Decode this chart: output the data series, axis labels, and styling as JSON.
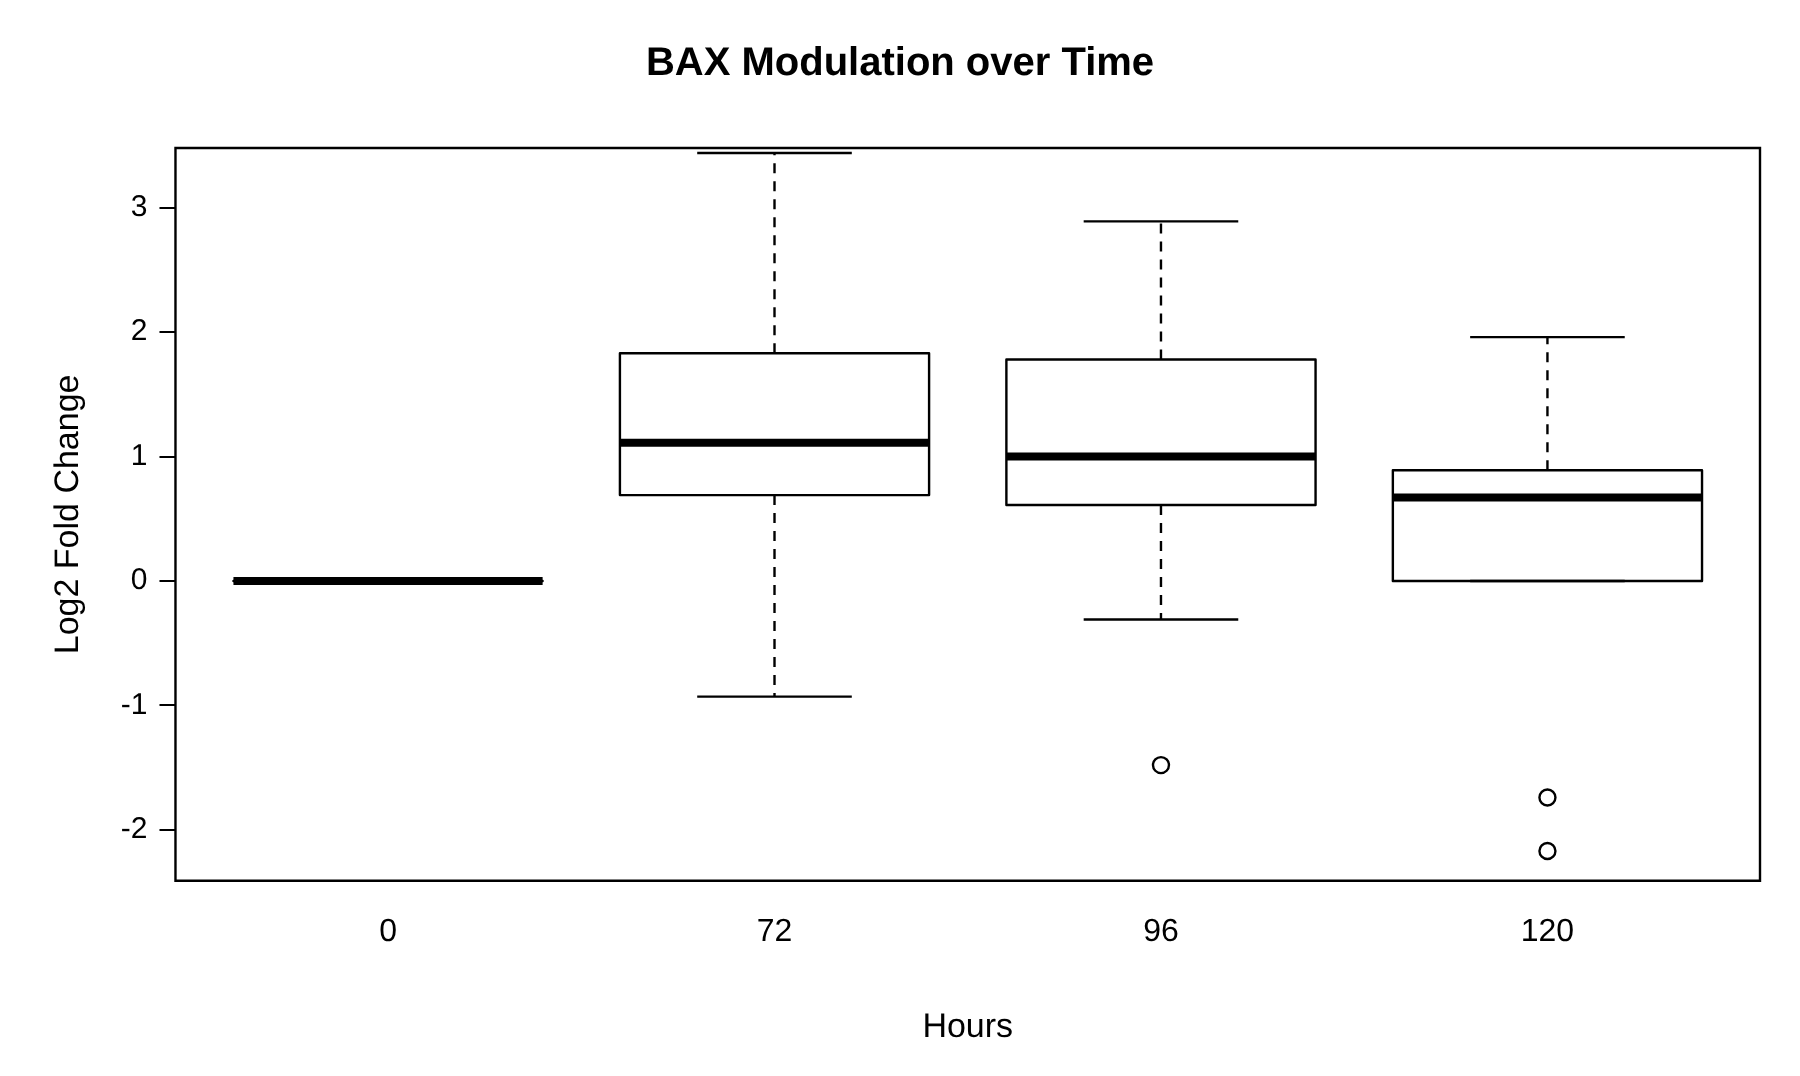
{
  "chart_data": {
    "type": "box",
    "title": "BAX Modulation over Time",
    "xlabel": "Hours",
    "ylabel": "Log2 Fold Change",
    "categories": [
      "0",
      "72",
      "96",
      "120"
    ],
    "boxes": [
      {
        "low": 0,
        "q1": 0,
        "median": 0,
        "q3": 0,
        "high": 0
      },
      {
        "low": -0.93,
        "q1": 0.69,
        "median": 1.11,
        "q3": 1.83,
        "high": 3.44
      },
      {
        "low": -0.31,
        "q1": 0.61,
        "median": 1.0,
        "q3": 1.78,
        "high": 2.89,
        "outliers": [
          -1.48
        ]
      },
      {
        "low": 0,
        "q1": 0,
        "median": 0.67,
        "q3": 0.89,
        "high": 1.96,
        "outliers": [
          -1.74,
          -2.17
        ]
      }
    ],
    "color": "#000000",
    "ylim": [
      -2.41,
      3.48
    ],
    "yticks": [
      -2,
      -1,
      0,
      1,
      2,
      3
    ],
    "grid": false,
    "legend": false
  }
}
